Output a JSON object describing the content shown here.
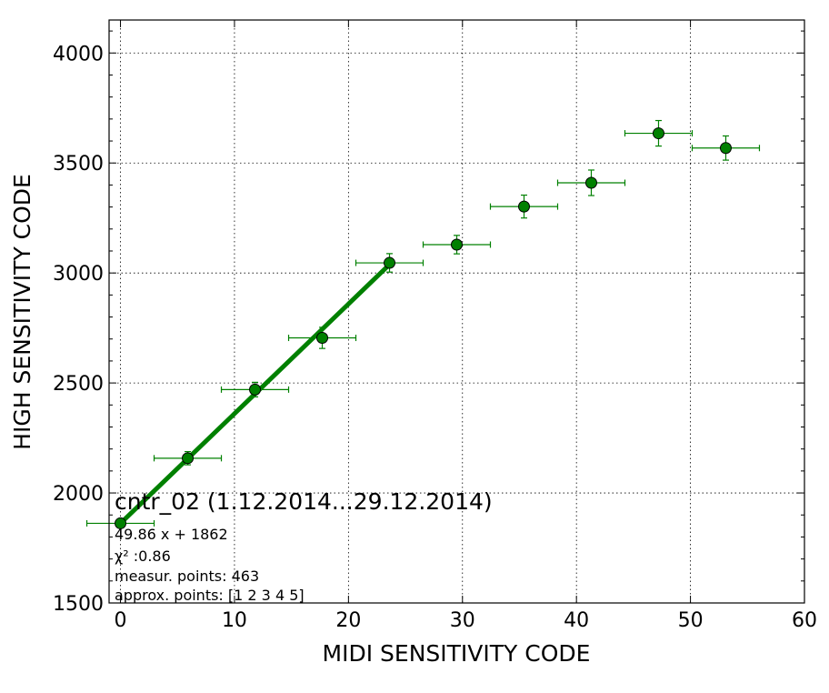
{
  "chart_data": {
    "type": "scatter",
    "xlabel": "MIDI SENSITIVITY CODE",
    "ylabel": "HIGH SENSITIVITY CODE",
    "xlim": [
      -1,
      60
    ],
    "ylim": [
      1500,
      4150
    ],
    "xticks": [
      0,
      10,
      20,
      30,
      40,
      50,
      60
    ],
    "yticks": [
      1500,
      2000,
      2500,
      3000,
      3500,
      4000
    ],
    "grid": true,
    "colors": {
      "marker": "#008000",
      "fit_line": "#008000",
      "errorbar": "#008000"
    },
    "points": {
      "x": [
        0.0,
        5.9,
        11.8,
        17.7,
        23.6,
        29.5,
        35.4,
        41.3,
        47.2,
        53.1
      ],
      "y": [
        1862,
        2158,
        2470,
        2705,
        3046,
        3129,
        3302,
        3410,
        3635,
        3568
      ],
      "x_err": [
        2.95,
        2.95,
        2.95,
        2.95,
        2.95,
        2.95,
        2.95,
        2.95,
        2.95,
        2.95
      ],
      "y_err": [
        18,
        30,
        33,
        48,
        42,
        42,
        52,
        58,
        58,
        55
      ]
    },
    "fit": {
      "slope": 49.86,
      "intercept": 1862,
      "x_range": [
        0.0,
        23.6
      ]
    },
    "annotation": {
      "title": "cntr_02 (1.12.2014...29.12.2014)",
      "lines": [
        "49.86 x + 1862",
        "χ² :0.86",
        "measur. points: 463",
        "approx. points: [1 2 3 4 5]"
      ]
    }
  }
}
